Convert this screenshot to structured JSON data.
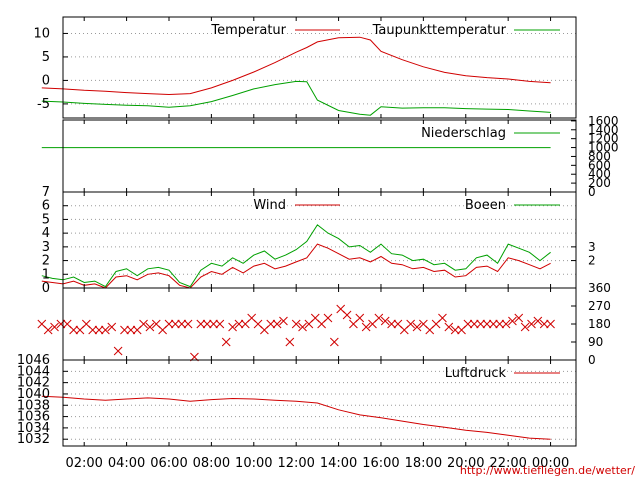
{
  "colors": {
    "primary": "#d00000",
    "secondary": "#00a000",
    "grid": "#9a9a9a",
    "frame": "#000000"
  },
  "footer_url": "http://www.tiefliegen.de/wetter/",
  "x_ticks": [
    "02:00",
    "04:00",
    "06:00",
    "08:00",
    "10:00",
    "12:00",
    "14:00",
    "16:00",
    "18:00",
    "20:00",
    "22:00",
    "00:00"
  ],
  "chart_data": [
    {
      "id": "temperature",
      "type": "line",
      "legend": [
        "Temperatur",
        "Taupunkttemperatur"
      ],
      "x_hours": [
        0,
        1,
        2,
        3,
        4,
        5,
        6,
        7,
        8,
        9,
        10,
        11,
        12,
        12.5,
        13,
        14,
        15,
        15.5,
        16,
        17,
        18,
        19,
        20,
        21,
        22,
        23,
        24
      ],
      "series": [
        {
          "name": "Temperatur",
          "color": "#d00000",
          "values": [
            -1.6,
            -1.8,
            -2.1,
            -2.3,
            -2.6,
            -2.8,
            -3.0,
            -2.8,
            -1.6,
            0.0,
            1.8,
            3.8,
            6.0,
            7.0,
            8.2,
            9.1,
            9.2,
            8.6,
            6.2,
            4.4,
            2.9,
            1.7,
            1.0,
            0.6,
            0.3,
            -0.2,
            -0.5
          ]
        },
        {
          "name": "Taupunkttemperatur",
          "color": "#00a000",
          "values": [
            -4.4,
            -4.6,
            -4.9,
            -5.1,
            -5.3,
            -5.4,
            -5.7,
            -5.4,
            -4.5,
            -3.2,
            -1.8,
            -0.9,
            -0.2,
            -0.3,
            -4.2,
            -6.4,
            -7.2,
            -7.4,
            -5.6,
            -5.9,
            -5.8,
            -5.8,
            -6.0,
            -6.1,
            -6.2,
            -6.5,
            -6.8
          ]
        }
      ],
      "yticks": [
        10,
        5,
        0,
        -5
      ],
      "ylim": [
        -8,
        13.5
      ]
    },
    {
      "id": "precipitation",
      "type": "line",
      "legend": [
        "Niederschlag"
      ],
      "x_hours": [
        0,
        24
      ],
      "series": [
        {
          "name": "Niederschlag",
          "color": "#00a000",
          "values": [
            1000,
            1000
          ]
        }
      ],
      "yticks_right": [
        1600,
        1400,
        1200,
        1000,
        800,
        600,
        400,
        200,
        0
      ],
      "ylim": [
        0,
        1620
      ]
    },
    {
      "id": "wind",
      "type": "line",
      "legend": [
        "Wind",
        "Boeen"
      ],
      "x_hours": [
        0,
        0.5,
        1,
        1.5,
        2,
        2.5,
        3,
        3.5,
        4,
        4.5,
        5,
        5.5,
        6,
        6.5,
        7,
        7.5,
        8,
        8.5,
        9,
        9.5,
        10,
        10.5,
        11,
        11.5,
        12,
        12.5,
        13,
        13.5,
        14,
        14.5,
        15,
        15.5,
        16,
        16.5,
        17,
        17.5,
        18,
        18.5,
        19,
        19.5,
        20,
        20.5,
        21,
        21.5,
        22,
        22.5,
        23,
        23.5,
        24
      ],
      "series": [
        {
          "name": "Wind",
          "color": "#d00000",
          "values": [
            0.5,
            0.4,
            0.3,
            0.5,
            0.2,
            0.3,
            0,
            0.8,
            0.9,
            0.6,
            1.0,
            1.1,
            0.9,
            0.2,
            0,
            0.8,
            1.2,
            1.0,
            1.5,
            1.1,
            1.6,
            1.8,
            1.4,
            1.6,
            1.9,
            2.2,
            3.2,
            2.9,
            2.5,
            2.1,
            2.2,
            1.9,
            2.3,
            1.8,
            1.7,
            1.4,
            1.5,
            1.2,
            1.3,
            0.8,
            0.9,
            1.5,
            1.6,
            1.2,
            2.2,
            2.0,
            1.7,
            1.4,
            1.8
          ]
        },
        {
          "name": "Boeen",
          "color": "#00a000",
          "values": [
            0.9,
            0.7,
            0.6,
            0.8,
            0.4,
            0.5,
            0.1,
            1.2,
            1.4,
            0.9,
            1.4,
            1.5,
            1.3,
            0.4,
            0.1,
            1.3,
            1.8,
            1.6,
            2.2,
            1.8,
            2.4,
            2.7,
            2.1,
            2.4,
            2.8,
            3.4,
            4.6,
            4.0,
            3.6,
            3.0,
            3.1,
            2.6,
            3.2,
            2.5,
            2.4,
            2.0,
            2.1,
            1.7,
            1.8,
            1.3,
            1.4,
            2.2,
            2.4,
            1.8,
            3.2,
            2.9,
            2.6,
            2.0,
            2.6
          ]
        }
      ],
      "yticks": [
        7,
        6,
        5,
        4,
        3,
        2,
        1,
        0
      ],
      "yticks_right": [
        3,
        2
      ],
      "ylim": [
        0,
        7
      ]
    },
    {
      "id": "wind_direction",
      "type": "scatter",
      "x_hours": [
        0,
        0.3,
        0.6,
        0.9,
        1.2,
        1.5,
        1.8,
        2.1,
        2.4,
        2.7,
        3.0,
        3.3,
        3.6,
        3.9,
        4.2,
        4.5,
        4.8,
        5.1,
        5.4,
        5.7,
        6.0,
        6.3,
        6.6,
        6.9,
        7.2,
        7.5,
        7.8,
        8.1,
        8.4,
        8.7,
        9.0,
        9.3,
        9.6,
        9.9,
        10.2,
        10.5,
        10.8,
        11.1,
        11.4,
        11.7,
        12.0,
        12.3,
        12.6,
        12.9,
        13.2,
        13.5,
        13.8,
        14.1,
        14.4,
        14.7,
        15.0,
        15.3,
        15.6,
        15.9,
        16.2,
        16.5,
        16.8,
        17.1,
        17.4,
        17.7,
        18.0,
        18.3,
        18.6,
        18.9,
        19.2,
        19.5,
        19.8,
        20.1,
        20.4,
        20.7,
        21.0,
        21.3,
        21.6,
        21.9,
        22.2,
        22.5,
        22.8,
        23.1,
        23.4,
        23.7,
        24.0
      ],
      "series": [
        {
          "name": "",
          "color": "#d00000",
          "values": [
            180,
            150,
            165,
            180,
            180,
            150,
            150,
            180,
            150,
            150,
            150,
            165,
            45,
            150,
            150,
            150,
            180,
            165,
            180,
            150,
            180,
            180,
            180,
            180,
            15,
            180,
            180,
            180,
            180,
            90,
            165,
            180,
            180,
            210,
            180,
            150,
            180,
            180,
            195,
            90,
            180,
            165,
            180,
            210,
            180,
            210,
            90,
            255,
            225,
            180,
            210,
            165,
            180,
            210,
            195,
            180,
            180,
            150,
            180,
            165,
            180,
            150,
            180,
            210,
            165,
            150,
            150,
            180,
            180,
            180,
            180,
            180,
            180,
            180,
            195,
            210,
            165,
            180,
            195,
            180,
            180
          ]
        }
      ],
      "yticks_right": [
        360,
        270,
        180,
        90,
        0
      ],
      "ylim": [
        0,
        360
      ]
    },
    {
      "id": "pressure",
      "type": "line",
      "legend": [
        "Luftdruck"
      ],
      "x_hours": [
        0,
        1,
        2,
        3,
        4,
        5,
        6,
        7,
        8,
        9,
        10,
        11,
        12,
        13,
        14,
        15,
        16,
        17,
        18,
        19,
        20,
        21,
        22,
        23,
        24
      ],
      "series": [
        {
          "name": "Luftdruck",
          "color": "#d00000",
          "values": [
            1039.6,
            1039.4,
            1039.1,
            1038.9,
            1039.1,
            1039.3,
            1039.1,
            1038.7,
            1039.0,
            1039.2,
            1039.1,
            1038.9,
            1038.7,
            1038.4,
            1037.2,
            1036.3,
            1035.8,
            1035.2,
            1034.6,
            1034.1,
            1033.6,
            1033.2,
            1032.7,
            1032.2,
            1032.0
          ]
        }
      ],
      "yticks": [
        1046,
        1044,
        1042,
        1040,
        1038,
        1036,
        1034,
        1032
      ],
      "ylim": [
        1030.8,
        1046
      ]
    }
  ]
}
